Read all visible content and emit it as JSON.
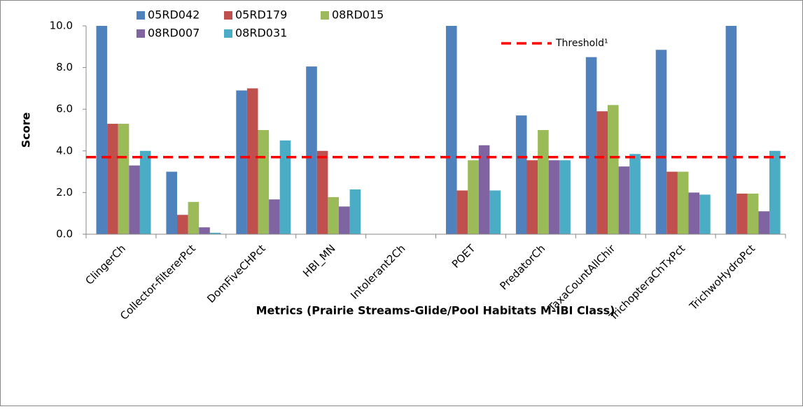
{
  "chart_data": {
    "type": "bar",
    "y_label": "Score",
    "x_label": "Metrics (Prairie Streams-Glide/Pool Habitats M-IBI Class)",
    "categories": [
      "ClingerCh",
      "Collector-filtererPct",
      "DomFiveCHPct",
      "HBI_MN",
      "Intolerant2Ch",
      "POET",
      "PredatorCh",
      "TaxaCountAllChir",
      "TrichopteraChTxPct",
      "TrichwoHydroPct"
    ],
    "series": [
      {
        "name": "05RD042",
        "color": "#4f81bd",
        "values": [
          10,
          3.0,
          6.9,
          8.05,
          0,
          10,
          5.7,
          8.5,
          8.85,
          10
        ]
      },
      {
        "name": "05RD179",
        "color": "#c0504d",
        "values": [
          5.3,
          0.93,
          7.0,
          4.0,
          0,
          2.1,
          3.55,
          5.9,
          3.0,
          1.95
        ]
      },
      {
        "name": "08RD015",
        "color": "#9bbb59",
        "values": [
          5.3,
          1.55,
          5.0,
          1.78,
          0,
          3.55,
          5.0,
          6.2,
          3.0,
          1.95
        ]
      },
      {
        "name": "08RD007",
        "color": "#8064a2",
        "values": [
          3.3,
          0.33,
          1.67,
          1.33,
          0,
          4.27,
          3.55,
          3.25,
          2.0,
          1.1
        ]
      },
      {
        "name": "08RD031",
        "color": "#4bacc6",
        "values": [
          4.0,
          0.07,
          4.5,
          2.15,
          0,
          2.1,
          3.55,
          3.85,
          1.9,
          4.0
        ]
      }
    ],
    "threshold": {
      "name": "Threshold¹",
      "value": 3.7,
      "color": "#ff0000"
    },
    "ylim": [
      0,
      10
    ],
    "yticks": [
      {
        "value": 0,
        "label": "0.0"
      },
      {
        "value": 2,
        "label": "2.0"
      },
      {
        "value": 4,
        "label": "4.0"
      },
      {
        "value": 6,
        "label": "6.0"
      },
      {
        "value": 8,
        "label": "8.0"
      },
      {
        "value": 10,
        "label": "10.0"
      }
    ]
  }
}
